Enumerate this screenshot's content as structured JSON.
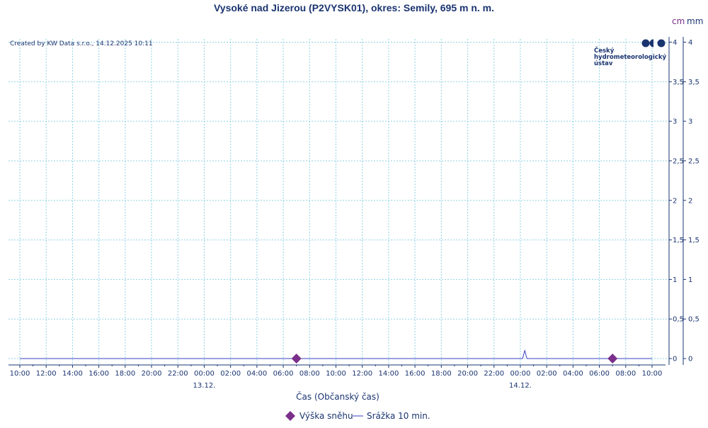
{
  "chart_data": {
    "type": "line",
    "title": "Vysoké nad Jizerou (P2VYSK01), okres: Semily, 695 m n. m.",
    "credit": "Created by KW Data s.r.o., 14.12.2025 10:11",
    "xlabel": "Čas (Občanský čas)",
    "unit_left": "cm",
    "unit_right": "mm",
    "x_start": "2025-12-12 10:00",
    "x_end": "2025-12-14 10:00",
    "x_ticks": [
      "10:00",
      "12:00",
      "14:00",
      "16:00",
      "18:00",
      "20:00",
      "22:00",
      "00:00",
      "02:00",
      "04:00",
      "06:00",
      "08:00",
      "10:00",
      "12:00",
      "14:00",
      "16:00",
      "18:00",
      "20:00",
      "22:00",
      "00:00",
      "02:00",
      "04:00",
      "06:00",
      "08:00",
      "10:00"
    ],
    "date_labels": [
      {
        "label": "13.12.",
        "at": "2025-12-13 00:00"
      },
      {
        "label": "14.12.",
        "at": "2025-12-14 00:00"
      }
    ],
    "ylim": [
      0,
      4
    ],
    "y_ticks": [
      "0",
      "0,5",
      "1",
      "1,5",
      "2",
      "2,5",
      "3",
      "3,5",
      "4"
    ],
    "grid": true,
    "legend_placement": "bottom-center",
    "series": [
      {
        "name": "Výška sněhu",
        "kind": "diamond-markers",
        "color": "#7a2f8a",
        "points": [
          {
            "x": "2025-12-13 07:00",
            "y": 0
          },
          {
            "x": "2025-12-14 07:00",
            "y": 0
          }
        ]
      },
      {
        "name": "Srážka 10 min.",
        "kind": "line",
        "color": "#3a3fc0",
        "points": [
          {
            "x": "2025-12-12 10:00",
            "y": 0
          },
          {
            "x": "2025-12-14 00:10",
            "y": 0
          },
          {
            "x": "2025-12-14 00:20",
            "y": 0.1
          },
          {
            "x": "2025-12-14 00:30",
            "y": 0
          },
          {
            "x": "2025-12-14 10:00",
            "y": 0
          }
        ]
      }
    ]
  },
  "logo": {
    "line1": "Český",
    "line2": "hydrometeorologický",
    "line3": "ústav",
    "color": "#1a3470"
  }
}
